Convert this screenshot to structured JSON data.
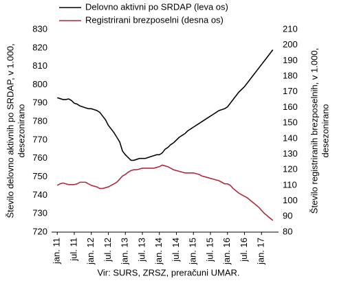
{
  "chart_data": {
    "type": "line",
    "source": "Vir: SURS, ZRSZ, preračuni UMAR.",
    "y_label": [
      "Število delovno aktivnih po SRDAP, v 1.000,",
      "desezonirano"
    ],
    "y2_label": [
      "Število registriranih brezposelnih, v 1.000,",
      "desezonirano"
    ],
    "categories": [
      "jan. 11",
      null,
      null,
      null,
      null,
      null,
      "jul. 11",
      null,
      null,
      null,
      null,
      null,
      "jan. 12",
      null,
      null,
      null,
      null,
      null,
      "jul. 12",
      null,
      null,
      null,
      null,
      null,
      "jan. 13",
      null,
      null,
      null,
      null,
      null,
      "jul. 13",
      null,
      null,
      null,
      null,
      null,
      "jan. 14",
      null,
      null,
      null,
      null,
      null,
      "jul. 14",
      null,
      null,
      null,
      null,
      null,
      "jan. 15",
      null,
      null,
      null,
      null,
      null,
      "jul. 15",
      null,
      null,
      null,
      null,
      null,
      "jan. 16",
      null,
      null,
      null,
      null,
      null,
      "jul. 16",
      null,
      null,
      null,
      null,
      null,
      "jan. 17",
      null,
      null,
      null,
      null
    ],
    "series": [
      {
        "name": "Delovno aktivni po SRDAP (leva os)",
        "color": "#000000",
        "values": [
          793,
          792.5,
          792,
          792,
          792.3,
          791.5,
          790,
          789.5,
          788.5,
          788,
          787.5,
          787,
          787,
          786.5,
          786,
          785,
          783,
          781,
          778,
          776,
          774,
          771.5,
          769,
          764,
          762,
          760.5,
          759,
          759,
          759.5,
          760,
          760,
          760,
          760.5,
          761,
          761.5,
          762,
          762,
          763,
          765,
          766,
          767.5,
          768.5,
          770,
          771.5,
          772.5,
          773.5,
          775,
          776,
          777,
          778,
          779,
          780,
          781,
          782,
          783,
          784,
          785,
          786,
          786.5,
          787,
          788,
          790,
          792,
          794,
          796,
          797.5,
          799,
          801,
          803,
          805,
          807,
          809,
          811,
          813,
          815,
          817,
          819
        ]
      },
      {
        "name": "Registrirani brezposelni (desna os)",
        "color": "#b0283c",
        "axis": "y2",
        "values": [
          110,
          111,
          111.5,
          111,
          110.5,
          110.5,
          110.5,
          111,
          112,
          112,
          112,
          111,
          110,
          109.5,
          109,
          108,
          108,
          108.5,
          109,
          110,
          111,
          112,
          114,
          116,
          117,
          118.5,
          119.5,
          120,
          120,
          120.5,
          121,
          121,
          121,
          121,
          121,
          121.5,
          122,
          123,
          122.5,
          122,
          121,
          120,
          119.5,
          119,
          118.5,
          118,
          118,
          118,
          118,
          117.5,
          117,
          116,
          115.5,
          115,
          114.5,
          114,
          113.5,
          113,
          112,
          111,
          111,
          110,
          108,
          106.5,
          105,
          104,
          103,
          102,
          100.5,
          99,
          97.5,
          96,
          94,
          92,
          90.5,
          89,
          87.5
        ]
      }
    ],
    "ylim": [
      720,
      830
    ],
    "yticks": [
      720,
      730,
      740,
      750,
      760,
      770,
      780,
      790,
      800,
      810,
      820,
      830
    ],
    "y2lim": [
      80,
      210
    ],
    "y2ticks": [
      80,
      90,
      100,
      110,
      120,
      130,
      140,
      150,
      160,
      170,
      180,
      190,
      200,
      210
    ]
  }
}
